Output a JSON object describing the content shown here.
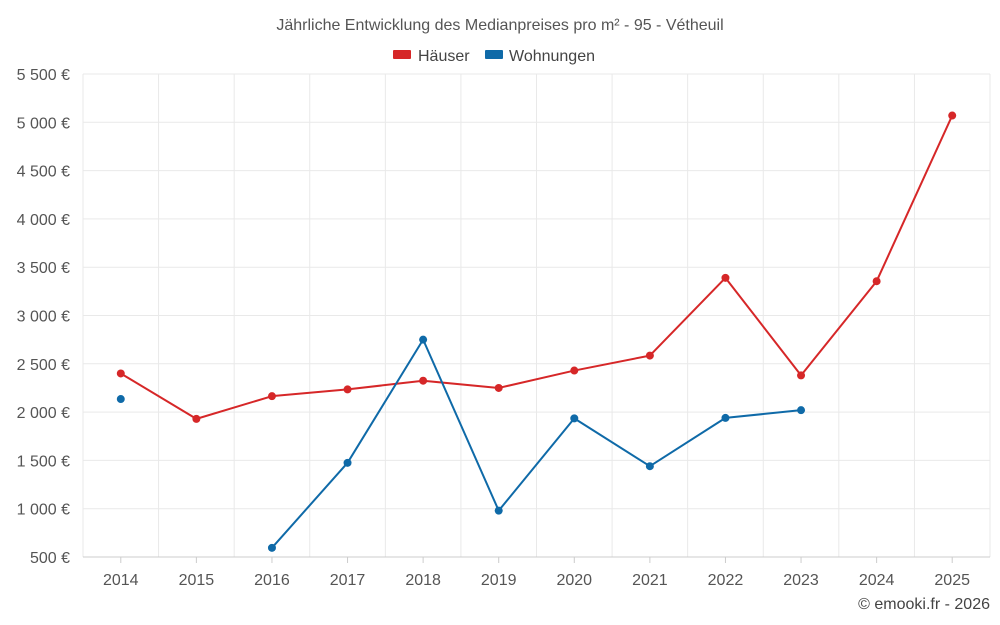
{
  "chart_data": {
    "type": "line",
    "title": "Jährliche Entwicklung des Medianpreises pro m² - 95 - Vétheuil",
    "categories": [
      "2014",
      "2015",
      "2016",
      "2017",
      "2018",
      "2019",
      "2020",
      "2021",
      "2022",
      "2023",
      "2024",
      "2025"
    ],
    "series": [
      {
        "name": "Häuser",
        "color": "#d62728",
        "values": [
          2400,
          1930,
          2165,
          2235,
          2325,
          2250,
          2430,
          2585,
          3390,
          2380,
          3355,
          5070
        ]
      },
      {
        "name": "Wohnungen",
        "color": "#0f6aa8",
        "values": [
          2135,
          null,
          595,
          1475,
          2750,
          980,
          1935,
          1440,
          1940,
          2020,
          null,
          null
        ]
      }
    ],
    "yticks": [
      500,
      1000,
      1500,
      2000,
      2500,
      3000,
      3500,
      4000,
      4500,
      5000,
      5500
    ],
    "ytick_labels": [
      "500 €",
      "1 000 €",
      "1 500 €",
      "2 000 €",
      "2 500 €",
      "3 000 €",
      "3 500 €",
      "4 000 €",
      "4 500 €",
      "5 000 €",
      "5 500 €"
    ],
    "ylim": [
      500,
      5500
    ],
    "xlabel": "",
    "ylabel": "",
    "legend": "top-center",
    "grid": true
  },
  "credit": "© emooki.fr - 2026"
}
